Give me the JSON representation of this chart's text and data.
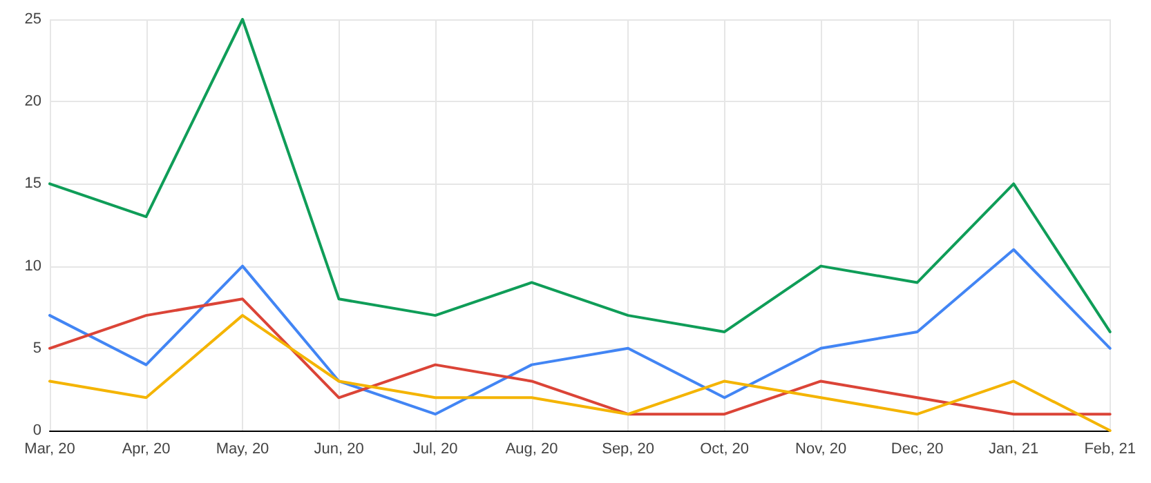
{
  "chart_data": {
    "type": "line",
    "categories": [
      "Mar, 20",
      "Apr, 20",
      "May, 20",
      "Jun, 20",
      "Jul, 20",
      "Aug, 20",
      "Sep, 20",
      "Oct, 20",
      "Nov, 20",
      "Dec, 20",
      "Jan, 21",
      "Feb, 21"
    ],
    "series": [
      {
        "color": "#0f9d58",
        "values": [
          15,
          13,
          25,
          8,
          7,
          9,
          7,
          6,
          10,
          9,
          15,
          6
        ]
      },
      {
        "color": "#4285f4",
        "values": [
          7,
          4,
          10,
          3,
          1,
          4,
          5,
          2,
          5,
          6,
          11,
          5
        ]
      },
      {
        "color": "#db4437",
        "values": [
          5,
          7,
          8,
          2,
          4,
          3,
          1,
          1,
          3,
          2,
          1,
          1
        ]
      },
      {
        "color": "#f4b400",
        "values": [
          3,
          2,
          7,
          3,
          2,
          2,
          1,
          3,
          2,
          1,
          3,
          0
        ]
      }
    ],
    "ylim": [
      0,
      25
    ],
    "yticks": [
      0,
      5,
      10,
      15,
      20,
      25
    ],
    "grid": true,
    "marker": "none",
    "line_style": "solid"
  }
}
